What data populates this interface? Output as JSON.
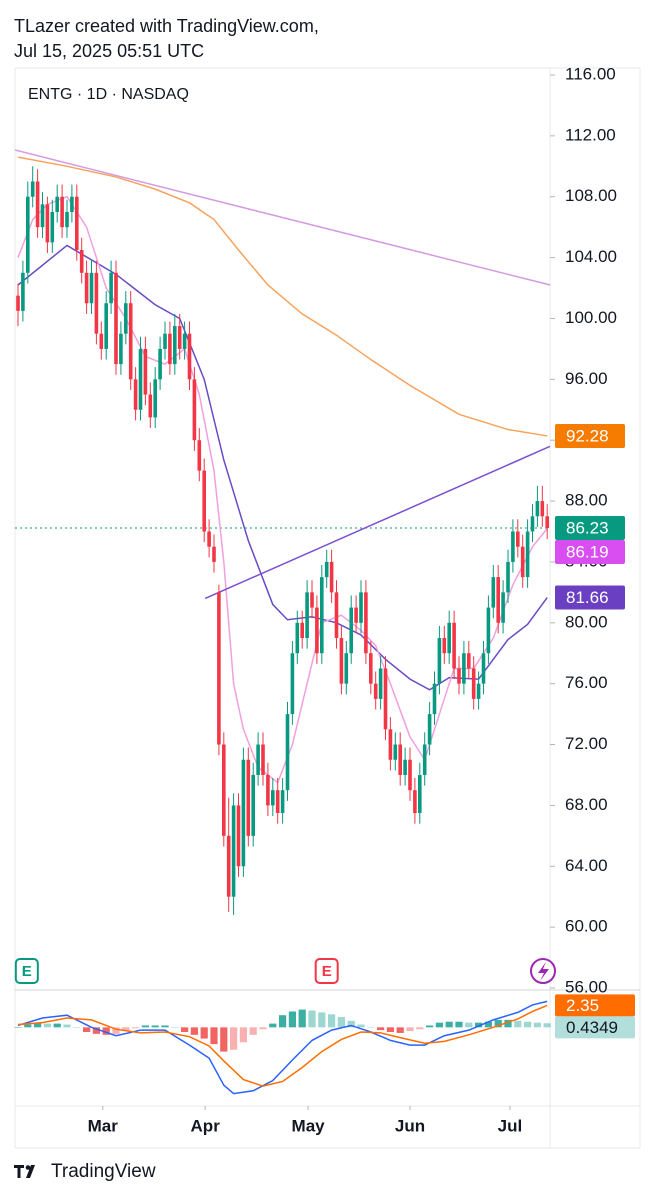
{
  "header": {
    "author": "TLazer created with TradingView.com,",
    "timestamp": "Jul 15, 2025 05:51 UTC"
  },
  "footer": {
    "brand": "TradingView"
  },
  "chart_data": {
    "type": "candlestick",
    "title": "ENTG · 1D · NASDAQ",
    "up_color": "#089981",
    "down_color": "#f23645",
    "open": [
      101.5,
      100.5,
      103,
      108,
      109,
      106,
      107.5,
      105,
      107,
      108,
      106,
      107,
      108,
      104.5,
      103,
      101,
      103,
      99,
      98,
      101,
      103,
      97,
      99,
      101,
      96,
      94,
      98,
      95,
      93.5,
      96,
      98,
      99,
      97,
      99.5,
      98,
      99,
      96,
      92,
      90,
      86,
      85,
      82,
      72,
      66,
      62,
      68,
      64,
      71,
      66,
      70,
      72,
      70,
      68,
      69,
      67.5,
      69,
      74,
      78,
      80,
      79,
      82,
      81,
      78,
      83,
      84,
      82,
      79,
      76,
      78,
      81,
      80,
      82,
      78,
      76,
      75,
      77,
      73,
      71,
      72,
      70,
      71,
      69,
      67.5,
      70,
      72,
      74,
      76,
      79,
      78,
      80,
      77,
      76,
      78,
      77,
      75,
      76,
      78,
      81,
      83,
      80,
      82,
      84,
      86,
      85,
      83,
      86,
      87,
      88,
      87
    ],
    "high": [
      102.3,
      103.8,
      109,
      110,
      109.8,
      108.3,
      108,
      107.8,
      108.8,
      108.8,
      107.8,
      108.8,
      108.8,
      105.3,
      103.8,
      103.8,
      103.8,
      99.8,
      101.8,
      103.8,
      103.8,
      99.8,
      101.8,
      101.8,
      96.8,
      98.8,
      98.8,
      95.8,
      96.8,
      98.8,
      99.8,
      99.8,
      100.3,
      100.3,
      99.8,
      99.8,
      96.8,
      92.8,
      90.8,
      86.8,
      85.8,
      82.5,
      72.8,
      68.5,
      68.8,
      68.8,
      71.8,
      71.8,
      70.8,
      72.8,
      72.8,
      70.8,
      69.8,
      69.8,
      69.8,
      74.8,
      78.8,
      80.8,
      80.8,
      82.8,
      82.8,
      81.8,
      83.8,
      84.8,
      84.8,
      82.8,
      79.8,
      78.8,
      81.8,
      81.8,
      82.8,
      82.8,
      78.8,
      76.8,
      77.8,
      77.8,
      73.8,
      72.8,
      72.8,
      71.8,
      71.8,
      69.8,
      70.8,
      72.8,
      74.8,
      76.8,
      79.8,
      79.8,
      80.8,
      80.8,
      77.8,
      78.8,
      78.8,
      77.8,
      76.8,
      78.8,
      81.8,
      83.8,
      83.8,
      82.8,
      84.8,
      86.8,
      86.8,
      85.8,
      86.8,
      87.8,
      89,
      89,
      87.8
    ],
    "low": [
      99.5,
      99.8,
      102.3,
      107.3,
      105.3,
      105.3,
      104.3,
      104.3,
      106.3,
      105.3,
      105.3,
      106.3,
      103.8,
      102.3,
      100.3,
      100.3,
      98.3,
      97.3,
      97.3,
      100.3,
      96.3,
      96.3,
      98.3,
      95.3,
      93.3,
      93.3,
      94.3,
      92.8,
      92.8,
      95.3,
      97.3,
      96.3,
      96.3,
      97.3,
      97.3,
      95.3,
      91.3,
      89.3,
      85.3,
      84.3,
      83.3,
      71.3,
      65.3,
      61,
      60.8,
      63.3,
      63.3,
      65.3,
      65.3,
      69.3,
      69.3,
      67.3,
      67.3,
      66.8,
      66.8,
      68.3,
      73.3,
      77.3,
      78.3,
      78.3,
      80.3,
      77.3,
      77.3,
      82.3,
      81.3,
      78.3,
      75.3,
      75.3,
      77.3,
      79.3,
      79.3,
      77.3,
      75.3,
      74.3,
      74.3,
      72.3,
      70.3,
      70.3,
      69.3,
      69.3,
      68.3,
      66.8,
      66.8,
      69.3,
      71.3,
      73.3,
      75.3,
      77.3,
      77.3,
      76.3,
      75.3,
      75.3,
      76.3,
      74.3,
      74.3,
      75.3,
      77.3,
      80.3,
      79.3,
      79.3,
      81.3,
      83.3,
      84.3,
      82.3,
      82.3,
      85.3,
      86.3,
      86.3,
      85.5
    ],
    "close": [
      100.5,
      103,
      108,
      109,
      106,
      107.5,
      105,
      107,
      108,
      106,
      107,
      108,
      104.5,
      103,
      101,
      103,
      99,
      98,
      101,
      103,
      97,
      99,
      101,
      96,
      94,
      98,
      95,
      93.5,
      96,
      98,
      99,
      97,
      99.5,
      98,
      99,
      96,
      92,
      90,
      86,
      85,
      84,
      72,
      66,
      62,
      68,
      64,
      71,
      66,
      70,
      72,
      70,
      68,
      69,
      67.5,
      69,
      74,
      78,
      80,
      79,
      82,
      81,
      78,
      83,
      84,
      82,
      79,
      76,
      78,
      81,
      80,
      82,
      78,
      76,
      75,
      77,
      73,
      71,
      72,
      70,
      71,
      69,
      67.5,
      70,
      72,
      74,
      76,
      79,
      78,
      80,
      77,
      76,
      78,
      77,
      75,
      76,
      78,
      81,
      83,
      80,
      82,
      84,
      86,
      85,
      83,
      86,
      87,
      88,
      87,
      86.23
    ],
    "lines": [
      {
        "color": "#f7a35c",
        "x": [
          0,
          10,
          20,
          28,
          35,
          40,
          45,
          51,
          58,
          65,
          72,
          80,
          90,
          100,
          108
        ],
        "values": [
          110.6,
          110,
          109.3,
          108.5,
          107.6,
          106.5,
          104.5,
          102.2,
          100.3,
          98.9,
          97.3,
          95.6,
          93.7,
          92.7,
          92.28
        ]
      },
      {
        "color": "#6a4bc4",
        "x": [
          0,
          10,
          20,
          28,
          33,
          38,
          42,
          47,
          52,
          55,
          60,
          65,
          70,
          75,
          80,
          84,
          88,
          94,
          100,
          104,
          108
        ],
        "values": [
          102.2,
          104.8,
          102.9,
          100.9,
          100,
          96,
          90.7,
          85.4,
          81.2,
          80.2,
          80.4,
          80,
          79.2,
          77.6,
          76.3,
          75.6,
          76.4,
          76.3,
          78.9,
          79.9,
          81.66
        ]
      },
      {
        "color": "#f0a0e0",
        "x": [
          0,
          3,
          6,
          10,
          14,
          18,
          22,
          26,
          30,
          34,
          37,
          40,
          42,
          44,
          46,
          49,
          53,
          56,
          59,
          62,
          66,
          70,
          73,
          76,
          80,
          83,
          86,
          89,
          93,
          97,
          101,
          105,
          108
        ],
        "values": [
          104,
          106.5,
          107.5,
          108,
          106,
          102,
          100,
          97.5,
          97,
          98,
          95,
          90,
          84,
          76,
          73,
          70.5,
          69.5,
          72,
          76,
          80,
          80.5,
          79.5,
          78.5,
          76,
          72.5,
          71,
          74,
          77,
          77,
          79,
          82.5,
          85,
          86.19
        ]
      },
      {
        "color": "#d59be0",
        "x": [
          -0.6,
          108.6
        ],
        "values": [
          111.07,
          102.2
        ]
      },
      {
        "color": "#7a4fd0",
        "x": [
          38.2,
          108.6
        ],
        "values": [
          81.6,
          91.6
        ]
      }
    ],
    "price_labels": [
      {
        "value": 92.28,
        "color": "#f57c00"
      },
      {
        "value": 86.23,
        "color": "#089981"
      },
      {
        "value": 86.19,
        "color": "#d84ef0"
      },
      {
        "value": 81.66,
        "color": "#6a3fc1"
      }
    ],
    "events": [
      {
        "index": 1.8,
        "label": "E",
        "color": "#089981"
      },
      {
        "index": 63,
        "label": "E",
        "color": "#f23645"
      }
    ],
    "ylim": [
      56,
      116
    ],
    "yticks": [
      {
        "value": 56,
        "label": "56.00"
      },
      {
        "value": 60,
        "label": "60.00"
      },
      {
        "value": 64,
        "label": "64.00"
      },
      {
        "value": 68,
        "label": "68.00"
      },
      {
        "value": 72,
        "label": "72.00"
      },
      {
        "value": 76,
        "label": "76.00"
      },
      {
        "value": 80,
        "label": "80.00"
      },
      {
        "value": 84,
        "label": "84.00"
      },
      {
        "value": 88,
        "label": "88.00"
      },
      {
        "value": 92,
        "label": "92.00"
      },
      {
        "value": 96,
        "label": "96.00"
      },
      {
        "value": 100,
        "label": "100.00"
      },
      {
        "value": 104,
        "label": "104.00"
      },
      {
        "value": 108,
        "label": "108.00"
      },
      {
        "value": 112,
        "label": "112.00"
      },
      {
        "value": 116,
        "label": "116.00"
      }
    ],
    "xlim": [
      -0.6,
      108.6
    ],
    "xticks": [
      {
        "value": 17.3,
        "label": "Mar"
      },
      {
        "value": 38.2,
        "label": "Apr"
      },
      {
        "value": 59.2,
        "label": "May"
      },
      {
        "value": 80,
        "label": "Jun"
      },
      {
        "value": 100.4,
        "label": "Jul"
      }
    ],
    "macd": {
      "ylim": [
        -8,
        4
      ],
      "macd_line": {
        "color": "#2962ff",
        "x": [
          0,
          5,
          10,
          15,
          20,
          25,
          30,
          35,
          39,
          42,
          44,
          48,
          52,
          56,
          60,
          64,
          68,
          72,
          76,
          80,
          83,
          87,
          92,
          97,
          102,
          105,
          108
        ],
        "values": [
          0.2,
          1,
          1.3,
          0,
          -0.9,
          -0.3,
          -0.3,
          -1.9,
          -3.3,
          -6.2,
          -7.1,
          -6.8,
          -5.7,
          -3.5,
          -1.4,
          -0.3,
          0.2,
          -0.5,
          -1.4,
          -1.9,
          -1.9,
          -0.9,
          -0.3,
          0.8,
          1.6,
          2.4,
          2.78
        ]
      },
      "signal_line": {
        "color": "#ff6d00",
        "x": [
          0,
          5,
          10,
          15,
          20,
          25,
          30,
          35,
          39,
          42,
          46,
          50,
          54,
          58,
          62,
          66,
          70,
          74,
          78,
          83,
          87,
          92,
          97,
          102,
          105,
          108
        ],
        "values": [
          0.3,
          0.5,
          1,
          0.8,
          -0.2,
          -0.6,
          -0.5,
          -1,
          -2,
          -3.6,
          -5.6,
          -6.3,
          -5.8,
          -4.3,
          -2.6,
          -1.3,
          -0.5,
          -0.6,
          -1.1,
          -1.7,
          -1.5,
          -0.8,
          0,
          0.9,
          1.7,
          2.35
        ]
      },
      "histogram": {
        "x": [
          0,
          2,
          4,
          6,
          8,
          10,
          12,
          14,
          16,
          18,
          20,
          22,
          24,
          26,
          28,
          30,
          32,
          34,
          36,
          38,
          40,
          42,
          44,
          46,
          48,
          50,
          52,
          54,
          56,
          58,
          60,
          62,
          64,
          66,
          68,
          70,
          72,
          74,
          76,
          78,
          80,
          82,
          84,
          86,
          88,
          90,
          92,
          94,
          96,
          98,
          100,
          102,
          104,
          106,
          108
        ],
        "values": [
          0,
          0.3,
          0.5,
          0.4,
          0.4,
          0.3,
          0,
          -0.5,
          -0.7,
          -0.8,
          -0.7,
          -0.4,
          -0.1,
          0.2,
          0.2,
          0.2,
          0,
          -0.5,
          -0.8,
          -1.2,
          -1.8,
          -2.6,
          -2.4,
          -1.6,
          -0.8,
          -0.2,
          0.4,
          1.3,
          1.7,
          1.9,
          1.8,
          1.6,
          1.4,
          1.1,
          0.7,
          0.3,
          0,
          -0.3,
          -0.5,
          -0.6,
          -0.4,
          -0.2,
          0.2,
          0.5,
          0.6,
          0.6,
          0.5,
          0.5,
          0.6,
          0.8,
          0.8,
          0.7,
          0.6,
          0.5,
          0.4349
        ],
        "up_color": "#26a69a",
        "down_color": "#ef5350"
      },
      "labels": [
        {
          "value": 2.35,
          "color": "#ff6d00",
          "text_color": "#ffffff"
        },
        {
          "value": 0.4349,
          "color": "#b2dfdb",
          "text_color": "#131722"
        }
      ]
    }
  }
}
